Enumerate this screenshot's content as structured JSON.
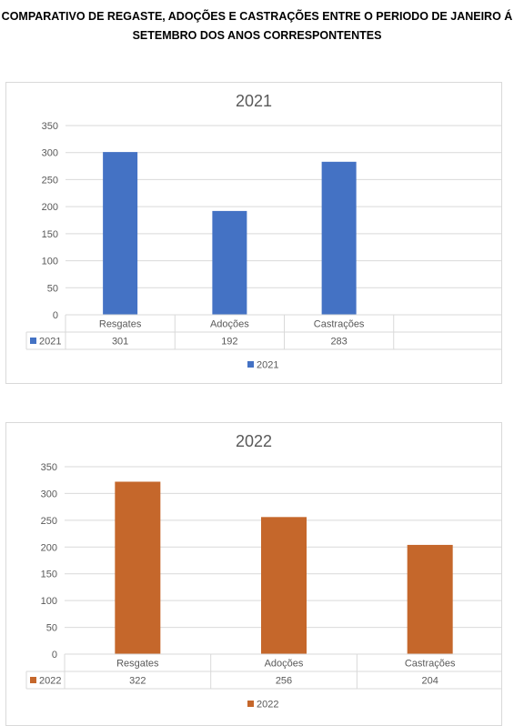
{
  "page": {
    "title_line1": "COMPARATIVO DE REGASTE, ADOÇÕES E CASTRAÇÕES ENTRE O PERIODO DE JANEIRO Á",
    "title_line2": "SETEMBRO DOS ANOS CORRESPONTENTES"
  },
  "chart_data": [
    {
      "type": "bar",
      "title": "2021",
      "categories": [
        "Resgates",
        "Adoções",
        "Castrações",
        ""
      ],
      "series": [
        {
          "name": "2021",
          "values": [
            301,
            192,
            283,
            null
          ],
          "color": "#4472c4"
        }
      ],
      "ylim": [
        0,
        350
      ],
      "yticks": [
        0,
        50,
        100,
        150,
        200,
        250,
        300,
        350
      ],
      "data_table": true,
      "legend": "bottom",
      "grid": true
    },
    {
      "type": "bar",
      "title": "2022",
      "categories": [
        "Resgates",
        "Adoções",
        "Castrações"
      ],
      "series": [
        {
          "name": "2022",
          "values": [
            322,
            256,
            204
          ],
          "color": "#c5672b"
        }
      ],
      "ylim": [
        0,
        350
      ],
      "yticks": [
        0,
        50,
        100,
        150,
        200,
        250,
        300,
        350
      ],
      "data_table": true,
      "legend": "bottom",
      "grid": true
    }
  ]
}
